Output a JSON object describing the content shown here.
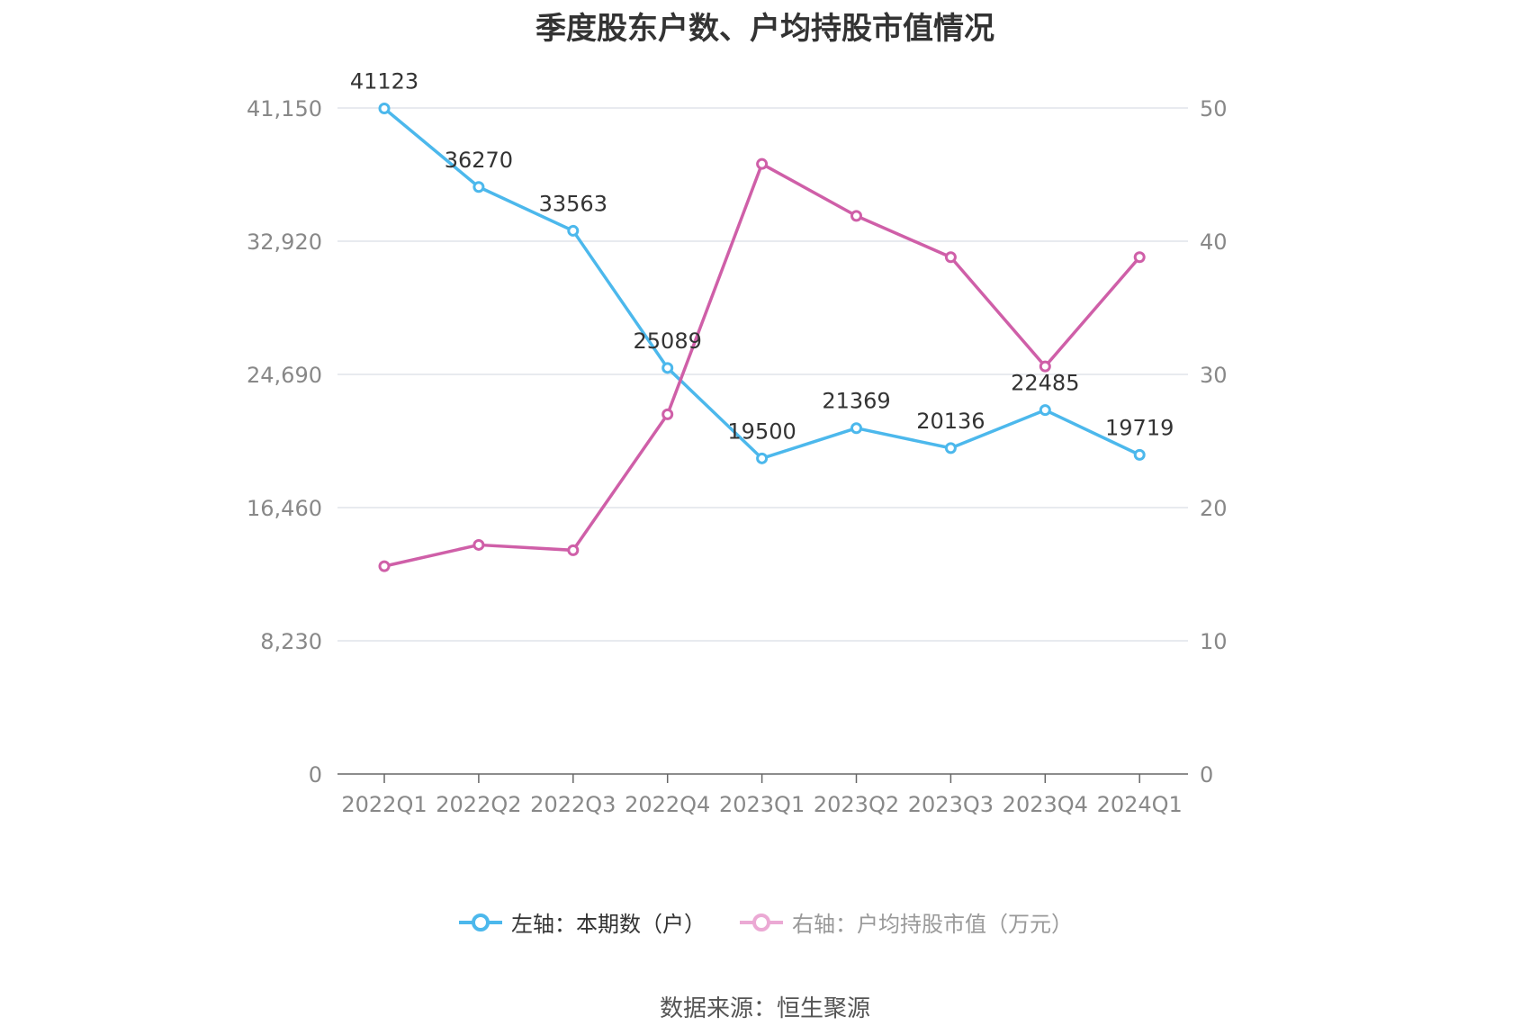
{
  "title": "季度股东户数、户均持股市值情况",
  "source": "数据来源：恒生聚源",
  "colors": {
    "series_left": "#4cb8ec",
    "series_right": "#cf5fa8",
    "series_right_legend": "#eba9d4",
    "grid": "#e1e4ea",
    "axis": "#666666",
    "tick_label": "#888888",
    "data_label": "#333333"
  },
  "chart_data": {
    "type": "line",
    "categories": [
      "2022Q1",
      "2022Q2",
      "2022Q3",
      "2022Q4",
      "2023Q1",
      "2023Q2",
      "2023Q3",
      "2023Q4",
      "2024Q1"
    ],
    "y_left": {
      "ticks": [
        0,
        8230,
        16460,
        24690,
        32920,
        41150
      ],
      "tick_labels": [
        "0",
        "8,230",
        "16,460",
        "24,690",
        "32,920",
        "41,150"
      ],
      "ylim": [
        0,
        41150
      ]
    },
    "y_right": {
      "ticks": [
        0,
        10,
        20,
        30,
        40,
        50
      ],
      "tick_labels": [
        "0",
        "10",
        "20",
        "30",
        "40",
        "50"
      ],
      "ylim": [
        0,
        50
      ]
    },
    "grid": true,
    "legend_position": "bottom",
    "series": [
      {
        "name": "左轴：本期数（户）",
        "axis": "left",
        "values": [
          41123,
          36270,
          33563,
          25089,
          19500,
          21369,
          20136,
          22485,
          19719
        ],
        "labels": [
          "41123",
          "36270",
          "33563",
          "25089",
          "19500",
          "21369",
          "20136",
          "22485",
          "19719"
        ]
      },
      {
        "name": "右轴：户均持股市值（万元）",
        "axis": "right",
        "values": [
          15.6,
          17.2,
          16.8,
          27.0,
          45.8,
          41.9,
          38.8,
          30.6,
          38.8
        ]
      }
    ]
  }
}
